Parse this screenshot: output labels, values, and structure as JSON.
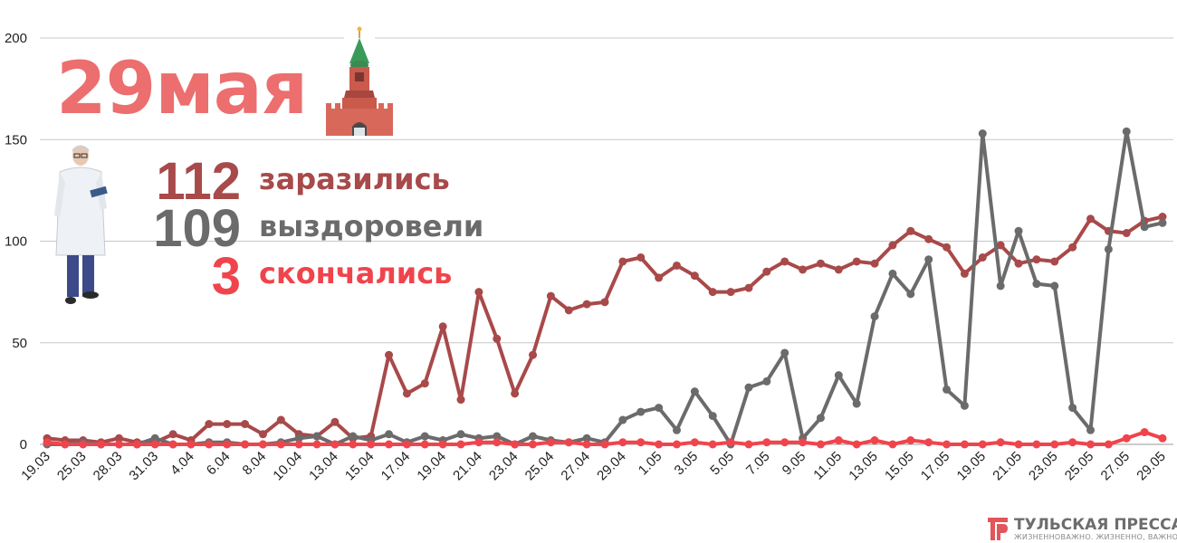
{
  "title": {
    "date": "29мая"
  },
  "stats": [
    {
      "value": "112",
      "label": "заразились",
      "color": "#a8494a"
    },
    {
      "value": "109",
      "label": "выздоровели",
      "color": "#6b6b6b"
    },
    {
      "value": "3",
      "label": "скончались",
      "color": "#f0444c"
    }
  ],
  "brand": {
    "name": "ТУЛЬСКАЯ ПРЕССА",
    "tagline": "ЖИЗНЕННОВАЖНО. ЖИЗНЕННО, ВАЖНО"
  },
  "icons": {
    "kremlin_tower": "kremlin-tower-icon",
    "doctor": "doctor-illustration",
    "brand_logo": "tp-logo-icon"
  },
  "chart_data": {
    "type": "line",
    "ylim": [
      0,
      200
    ],
    "yticks": [
      0,
      50,
      100,
      150,
      200
    ],
    "grid": true,
    "x_tick_labels": [
      "19.03",
      "25.03",
      "28.03",
      "31.03",
      "4.04",
      "6.04",
      "8.04",
      "10.04",
      "13.04",
      "15.04",
      "17.04",
      "19.04",
      "21.04",
      "23.04",
      "25.04",
      "27.04",
      "29.04",
      "1.05",
      "3.05",
      "5.05",
      "7.05",
      "9.05",
      "11.05",
      "13.05",
      "15.05",
      "17.05",
      "19.05",
      "21.05",
      "23.05",
      "25.05",
      "27.05",
      "29.05"
    ],
    "series": [
      {
        "color": "#a8494a",
        "values": [
          3,
          2,
          2,
          1,
          3,
          1,
          1,
          5,
          2,
          10,
          10,
          10,
          5,
          12,
          5,
          4,
          11,
          3,
          4,
          44,
          25,
          30,
          58,
          22,
          75,
          52,
          25,
          44,
          73,
          66,
          69,
          70,
          90,
          92,
          82,
          88,
          83,
          75,
          75,
          77,
          85,
          90,
          86,
          89,
          86,
          90,
          89,
          98,
          105,
          101,
          97,
          84,
          92,
          98,
          89,
          91,
          90,
          97,
          111,
          105,
          104,
          110,
          112
        ]
      },
      {
        "color": "#6b6b6b",
        "values": [
          0,
          0,
          1,
          0,
          0,
          0,
          3,
          0,
          0,
          1,
          1,
          0,
          0,
          1,
          3,
          4,
          0,
          4,
          2,
          5,
          1,
          4,
          2,
          5,
          3,
          4,
          0,
          4,
          2,
          1,
          3,
          1,
          12,
          16,
          18,
          7,
          26,
          14,
          0,
          28,
          31,
          45,
          3,
          13,
          34,
          20,
          63,
          84,
          74,
          91,
          27,
          19,
          153,
          78,
          105,
          79,
          78,
          18,
          7,
          96,
          154,
          107,
          109
        ]
      },
      {
        "color": "#f0444c",
        "values": [
          1,
          0,
          0,
          0,
          0,
          0,
          0,
          0,
          0,
          0,
          0,
          0,
          0,
          0,
          0,
          0,
          0,
          0,
          0,
          0,
          0,
          0,
          0,
          0,
          1,
          1,
          0,
          0,
          1,
          1,
          0,
          0,
          1,
          1,
          0,
          0,
          1,
          0,
          1,
          0,
          1,
          1,
          1,
          0,
          2,
          0,
          2,
          0,
          2,
          1,
          0,
          0,
          0,
          1,
          0,
          0,
          0,
          1,
          0,
          0,
          3,
          6,
          3
        ]
      }
    ]
  }
}
